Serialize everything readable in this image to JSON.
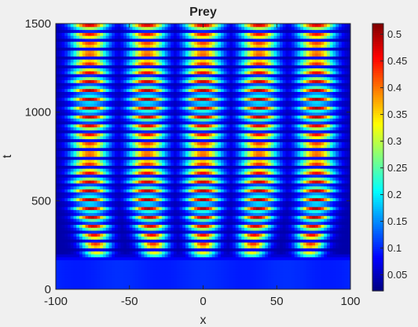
{
  "chart_data": {
    "type": "heatmap",
    "title": "Prey",
    "xlabel": "x",
    "ylabel": "t",
    "xlim": [
      -100,
      100
    ],
    "ylim": [
      0,
      1500
    ],
    "xticks": [
      -100,
      -50,
      0,
      50,
      100
    ],
    "yticks": [
      0,
      500,
      1000,
      1500
    ],
    "colormap": "jet",
    "colorbar": {
      "position": "right",
      "range": [
        0.02,
        0.52
      ],
      "ticks": [
        0.05,
        0.1,
        0.15,
        0.2,
        0.25,
        0.3,
        0.35,
        0.4,
        0.45,
        0.5
      ]
    },
    "stripes": [
      {
        "x_center_late": -77,
        "x_center_early": -72
      },
      {
        "x_center_late": -38,
        "x_center_early": -33
      },
      {
        "x_center_late": 0,
        "x_center_early": 0
      },
      {
        "x_center_late": 38,
        "x_center_early": 33
      },
      {
        "x_center_late": 77,
        "x_center_early": 72
      }
    ],
    "background_value": 0.1,
    "onset_t": 200,
    "peak_value": 0.5
  }
}
